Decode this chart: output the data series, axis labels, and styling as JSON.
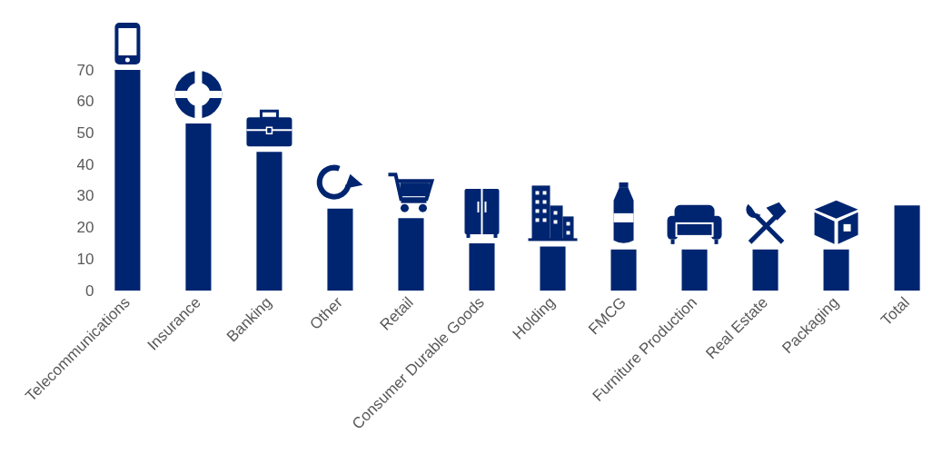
{
  "chart_data": {
    "type": "bar",
    "categories": [
      "Telecommunications",
      "Insurance",
      "Banking",
      "Other",
      "Retail",
      "Consumer Durable Goods",
      "Holding",
      "FMCG",
      "Furniture Production",
      "Real Estate",
      "Packaging",
      "Total"
    ],
    "values": [
      70,
      53,
      44,
      26,
      23,
      15,
      14,
      13,
      13,
      13,
      13,
      27
    ],
    "color": "#002570",
    "ylim": [
      0,
      70
    ],
    "yticks": [
      0,
      10,
      20,
      30,
      40,
      50,
      60,
      70
    ],
    "grid": false
  }
}
